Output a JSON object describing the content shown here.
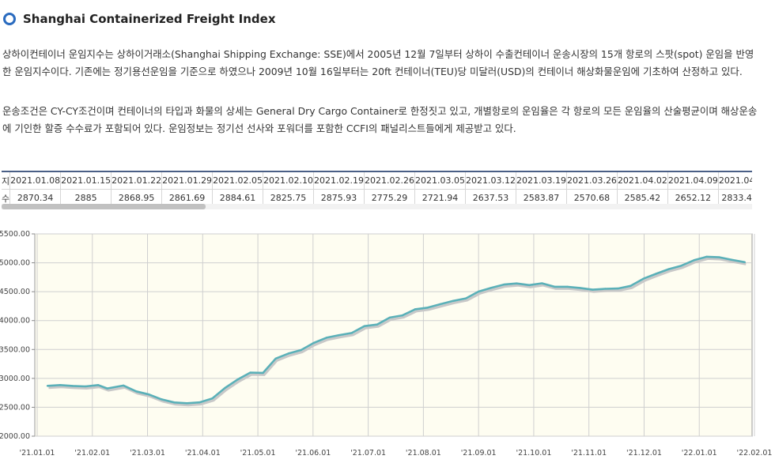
{
  "header": {
    "title": "Shanghai Containerized Freight Index"
  },
  "description": {
    "para1": "상하이컨테이너 운임지수는 상하이거래소(Shanghai Shipping Exchange: SSE)에서 2005년 12월 7일부터 상하이 수출컨테이너 운송시장의 15개 항로의 스팟(spot) 운임을 반영한 운임지수이다. 기존에는 정기용선운임을 기준으로 하였으나 2009년 10월 16일부터는 20ft 컨테이너(TEU)당 미달러(USD)의 컨테이너 해상화물운임에 기초하여 산정하고 있다.",
    "para2": "운송조건은 CY-CY조건이며 컨테이너의 타입과 화물의 상세는 General Dry Cargo Container로 한정짓고 있고, 개별항로의 운임율은 각 항로의 모든 운임율의 산술평균이며 해상운송에 기인한 할증 수수료가 포함되어 있다. 운임정보는 정기선 선사와 포워더를 포함한 CCFI의 패널리스트들에게 제공받고 있다."
  },
  "table": {
    "row1_label": "지",
    "row2_label": "수",
    "dates": [
      "2021.01.08",
      "2021.01.15",
      "2021.01.22",
      "2021.01.29",
      "2021.02.05",
      "2021.02.10",
      "2021.02.19",
      "2021.02.26",
      "2021.03.05",
      "2021.03.12",
      "2021.03.19",
      "2021.03.26",
      "2021.04.02",
      "2021.04.09",
      "2021.04"
    ],
    "values": [
      "2870.34",
      "2885",
      "2868.95",
      "2861.69",
      "2884.61",
      "2825.75",
      "2875.93",
      "2775.29",
      "2721.94",
      "2637.53",
      "2583.87",
      "2570.68",
      "2585.42",
      "2652.12",
      "2833.4"
    ]
  },
  "chart_data": {
    "type": "line",
    "title": "",
    "xlabel": "",
    "ylabel": "",
    "ylim": [
      2000,
      5500
    ],
    "y_ticks": [
      "5500.00",
      "5000.00",
      "4500.00",
      "4000.00",
      "3500.00",
      "3000.00",
      "2500.00",
      "2000.00"
    ],
    "x_ticks": [
      "'21.01.01",
      "'21.02.01",
      "'21.03.01",
      "'21.04.01",
      "'21.05.01",
      "'21.06.01",
      "'21.07.01",
      "'21.08.01",
      "'21.09.01",
      "'21.10.01",
      "'21.11.01",
      "'21.12.01",
      "'22.01.01",
      "'22.02.01"
    ],
    "grid": true,
    "colors": {
      "line": "#5ab0b8",
      "background": "#fefdf1",
      "grid": "#cfcfcf"
    },
    "x": [
      "2021-01-08",
      "2021-01-15",
      "2021-01-22",
      "2021-01-29",
      "2021-02-05",
      "2021-02-10",
      "2021-02-19",
      "2021-02-26",
      "2021-03-05",
      "2021-03-12",
      "2021-03-19",
      "2021-03-26",
      "2021-04-02",
      "2021-04-09",
      "2021-04-16",
      "2021-04-23",
      "2021-04-30",
      "2021-05-07",
      "2021-05-14",
      "2021-05-21",
      "2021-05-28",
      "2021-06-04",
      "2021-06-11",
      "2021-06-18",
      "2021-06-25",
      "2021-07-02",
      "2021-07-09",
      "2021-07-16",
      "2021-07-23",
      "2021-07-30",
      "2021-08-06",
      "2021-08-13",
      "2021-08-20",
      "2021-08-27",
      "2021-09-03",
      "2021-09-10",
      "2021-09-17",
      "2021-09-24",
      "2021-10-01",
      "2021-10-08",
      "2021-10-15",
      "2021-10-22",
      "2021-10-29",
      "2021-11-05",
      "2021-11-12",
      "2021-11-19",
      "2021-11-26",
      "2021-12-03",
      "2021-12-10",
      "2021-12-17",
      "2021-12-24",
      "2021-12-31",
      "2022-01-07",
      "2022-01-14",
      "2022-01-21",
      "2022-01-28"
    ],
    "series": [
      {
        "values": [
          2870.34,
          2885,
          2868.95,
          2861.69,
          2884.61,
          2825.75,
          2875.93,
          2775.29,
          2721.94,
          2637.53,
          2583.87,
          2570.68,
          2585.42,
          2652.12,
          2833.4,
          2980,
          3100,
          3095,
          3343,
          3430,
          3490,
          3613,
          3703,
          3748,
          3785,
          3905,
          3932,
          4052,
          4090,
          4196,
          4225,
          4285,
          4340,
          4385,
          4502,
          4568,
          4623,
          4643,
          4614,
          4645,
          4585,
          4585,
          4565,
          4535,
          4550,
          4555,
          4600,
          4725,
          4810,
          4890,
          4950,
          5045,
          5105,
          5095,
          5050,
          5010
        ]
      }
    ]
  }
}
